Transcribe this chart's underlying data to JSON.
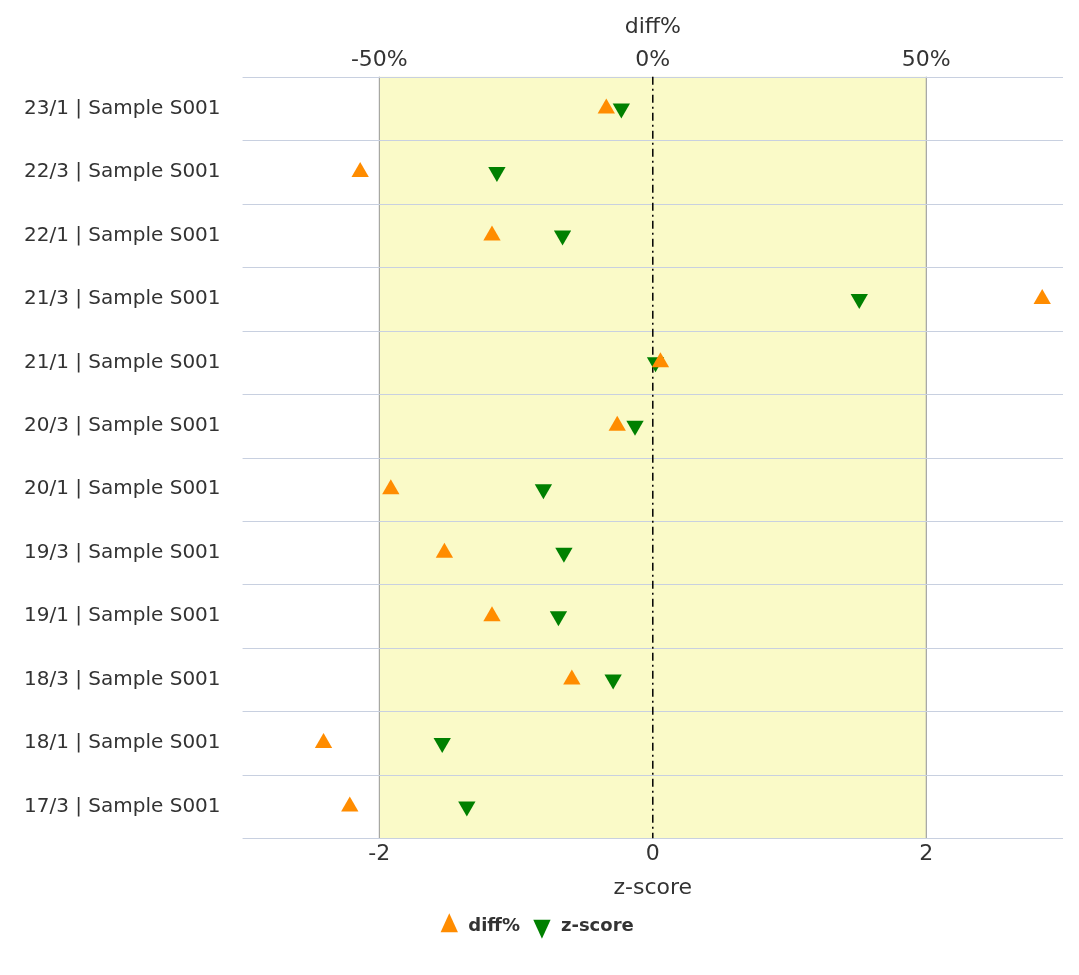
{
  "chart_data": {
    "type": "scatter",
    "orientation": "horizontal",
    "categories": [
      "23/1 | Sample S001",
      "22/3 | Sample S001",
      "22/1 | Sample S001",
      "21/3 | Sample S001",
      "21/1 | Sample S001",
      "20/3 | Sample S001",
      "20/1 | Sample S001",
      "19/3 | Sample S001",
      "19/1 | Sample S001",
      "18/3 | Sample S001",
      "18/1 | Sample S001",
      "17/3 | Sample S001"
    ],
    "series": [
      {
        "name": "diff%",
        "color": "#ff8c00",
        "marker": "triangle",
        "axis": "x2",
        "values": [
          -8.5,
          -53.5,
          -29.4,
          71.2,
          1.4,
          -6.5,
          -47.9,
          -38.1,
          -29.4,
          -14.8,
          -60.2,
          -55.4
        ]
      },
      {
        "name": "z-score",
        "color": "#008000",
        "marker": "triangle-down",
        "values": [
          -0.23,
          -1.14,
          -0.66,
          1.51,
          0.02,
          -0.13,
          -0.8,
          -0.65,
          -0.69,
          -0.29,
          -1.54,
          -1.36
        ]
      }
    ],
    "xlabel": "z-score",
    "x2label": "diff%",
    "xlim": [
      -3,
      3
    ],
    "xticks": [
      -2,
      0,
      2
    ],
    "x2lim": [
      -75,
      75
    ],
    "x2ticks": [
      {
        "value": -50,
        "label": "-50%"
      },
      {
        "value": 0,
        "label": "0%"
      },
      {
        "value": 50,
        "label": "50%"
      }
    ],
    "bands": [
      {
        "axis": "x",
        "from": -2,
        "to": 2,
        "color": "#fafac8"
      }
    ],
    "ref_lines": [
      {
        "axis": "x",
        "value": 0,
        "line_style": "dashdot",
        "color": "#000000"
      }
    ],
    "grid": true,
    "legend": "bottom"
  }
}
